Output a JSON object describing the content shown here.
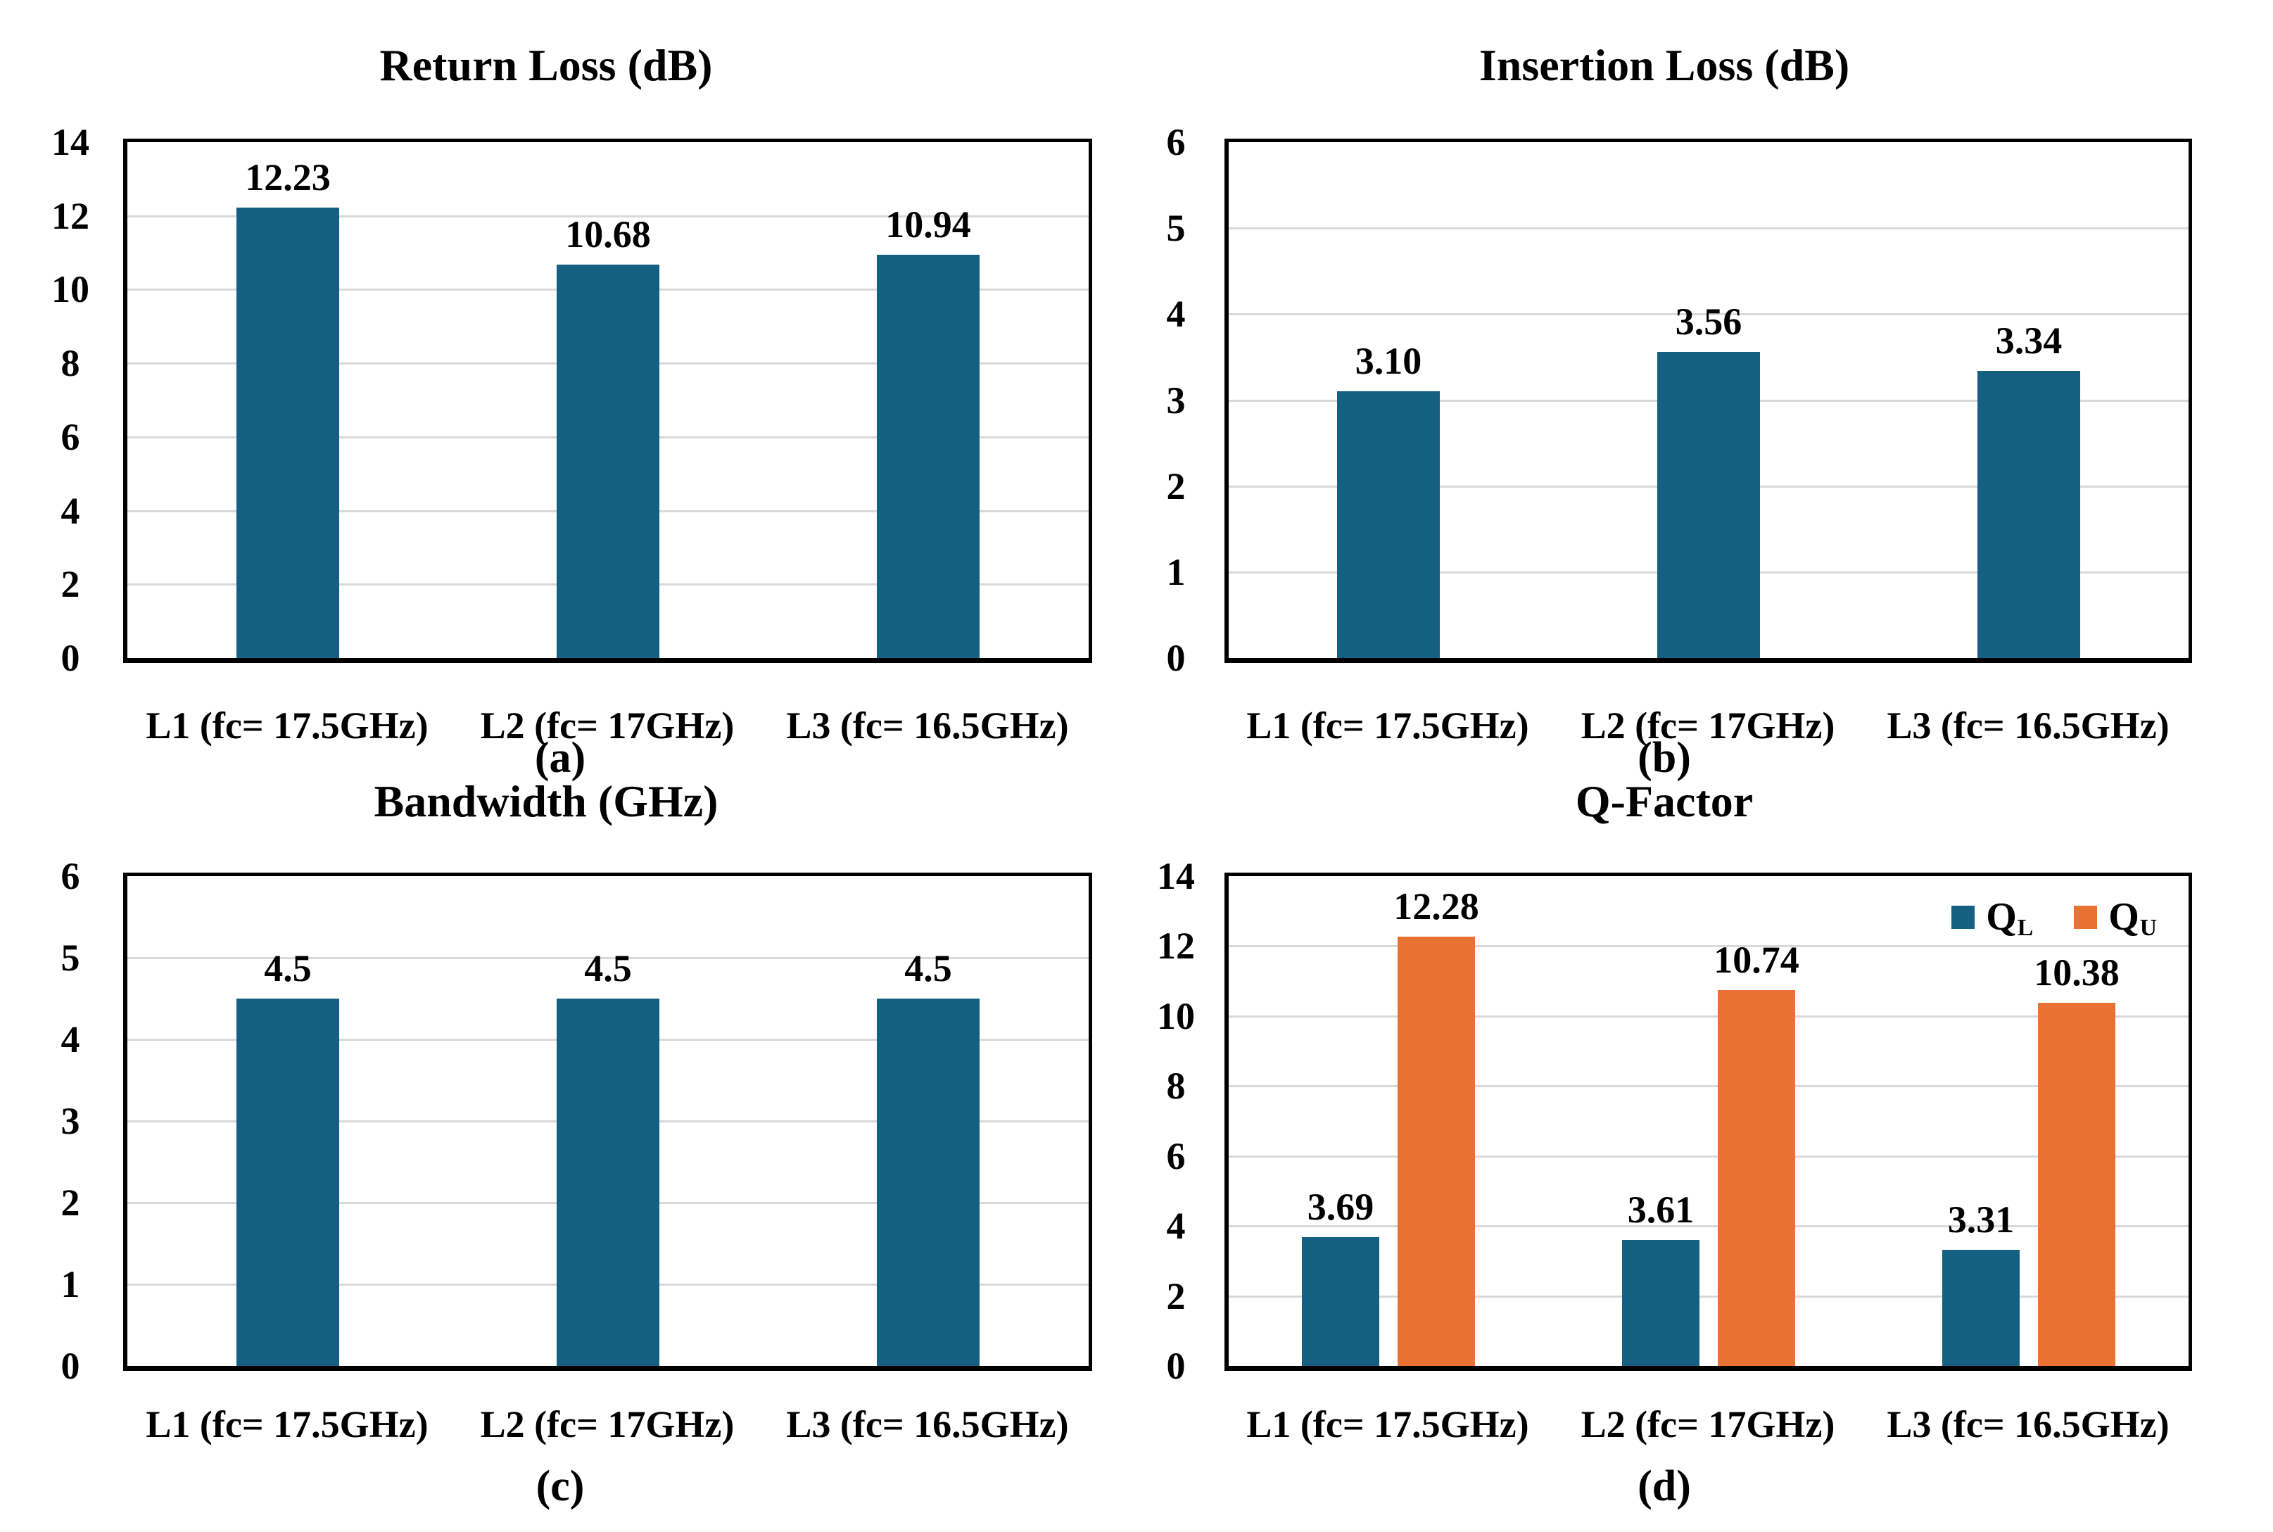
{
  "colors": {
    "bar_blue": "#156082",
    "bar_orange": "#E97132",
    "gridline": "#D9D9D9",
    "axis": "#000000",
    "text": "#000000",
    "background": "#FFFFFF"
  },
  "chart_data": [
    {
      "type": "bar",
      "panel": "(a)",
      "title": "Return Loss (dB)",
      "xlabel": "",
      "ylabel": "",
      "categories": [
        "L1 (fc= 17.5GHz)",
        "L2 (fc= 17GHz)",
        "L3 (fc= 16.5GHz)"
      ],
      "yticks": [
        "0",
        "2",
        "4",
        "6",
        "8",
        "10",
        "12",
        "14"
      ],
      "ylim": [
        0,
        14
      ],
      "ystep": 2,
      "grid": true,
      "legend": null,
      "series": [
        {
          "name": null,
          "color": "#156082",
          "values": [
            12.23,
            10.68,
            10.94
          ],
          "value_labels": [
            "12.23",
            "10.68",
            "10.94"
          ]
        }
      ]
    },
    {
      "type": "bar",
      "panel": "(b)",
      "title": "Insertion Loss (dB)",
      "xlabel": "",
      "ylabel": "",
      "categories": [
        "L1 (fc= 17.5GHz)",
        "L2 (fc= 17GHz)",
        "L3 (fc= 16.5GHz)"
      ],
      "yticks": [
        "0",
        "1",
        "2",
        "3",
        "4",
        "5",
        "6"
      ],
      "ylim": [
        0,
        6
      ],
      "ystep": 1,
      "grid": true,
      "legend": null,
      "series": [
        {
          "name": null,
          "color": "#156082",
          "values": [
            3.1,
            3.56,
            3.34
          ],
          "value_labels": [
            "3.10",
            "3.56",
            "3.34"
          ]
        }
      ]
    },
    {
      "type": "bar",
      "panel": "(c)",
      "title": "Bandwidth (GHz)",
      "xlabel": "",
      "ylabel": "",
      "categories": [
        "L1 (fc= 17.5GHz)",
        "L2 (fc= 17GHz)",
        "L3 (fc= 16.5GHz)"
      ],
      "yticks": [
        "0",
        "1",
        "2",
        "3",
        "4",
        "5",
        "6"
      ],
      "ylim": [
        0,
        6
      ],
      "ystep": 1,
      "grid": true,
      "legend": null,
      "series": [
        {
          "name": null,
          "color": "#156082",
          "values": [
            4.5,
            4.5,
            4.5
          ],
          "value_labels": [
            "4.5",
            "4.5",
            "4.5"
          ]
        }
      ]
    },
    {
      "type": "bar",
      "panel": "(d)",
      "title": "Q-Factor",
      "xlabel": "",
      "ylabel": "",
      "categories": [
        "L1 (fc= 17.5GHz)",
        "L2 (fc= 17GHz)",
        "L3 (fc= 16.5GHz)"
      ],
      "yticks": [
        "0",
        "2",
        "4",
        "6",
        "8",
        "10",
        "12",
        "14"
      ],
      "ylim": [
        0,
        14
      ],
      "ystep": 2,
      "grid": true,
      "legend": {
        "position": "top-right",
        "entries": [
          {
            "base": "Q",
            "sub": "L",
            "color": "#156082"
          },
          {
            "base": "Q",
            "sub": "U",
            "color": "#E97132"
          }
        ]
      },
      "series": [
        {
          "name": {
            "base": "Q",
            "sub": "L"
          },
          "color": "#156082",
          "values": [
            3.69,
            3.61,
            3.31
          ],
          "value_labels": [
            "3.69",
            "3.61",
            "3.31"
          ]
        },
        {
          "name": {
            "base": "Q",
            "sub": "U"
          },
          "color": "#E97132",
          "values": [
            12.28,
            10.74,
            10.38
          ],
          "value_labels": [
            "12.28",
            "10.74",
            "10.38"
          ]
        }
      ]
    }
  ]
}
